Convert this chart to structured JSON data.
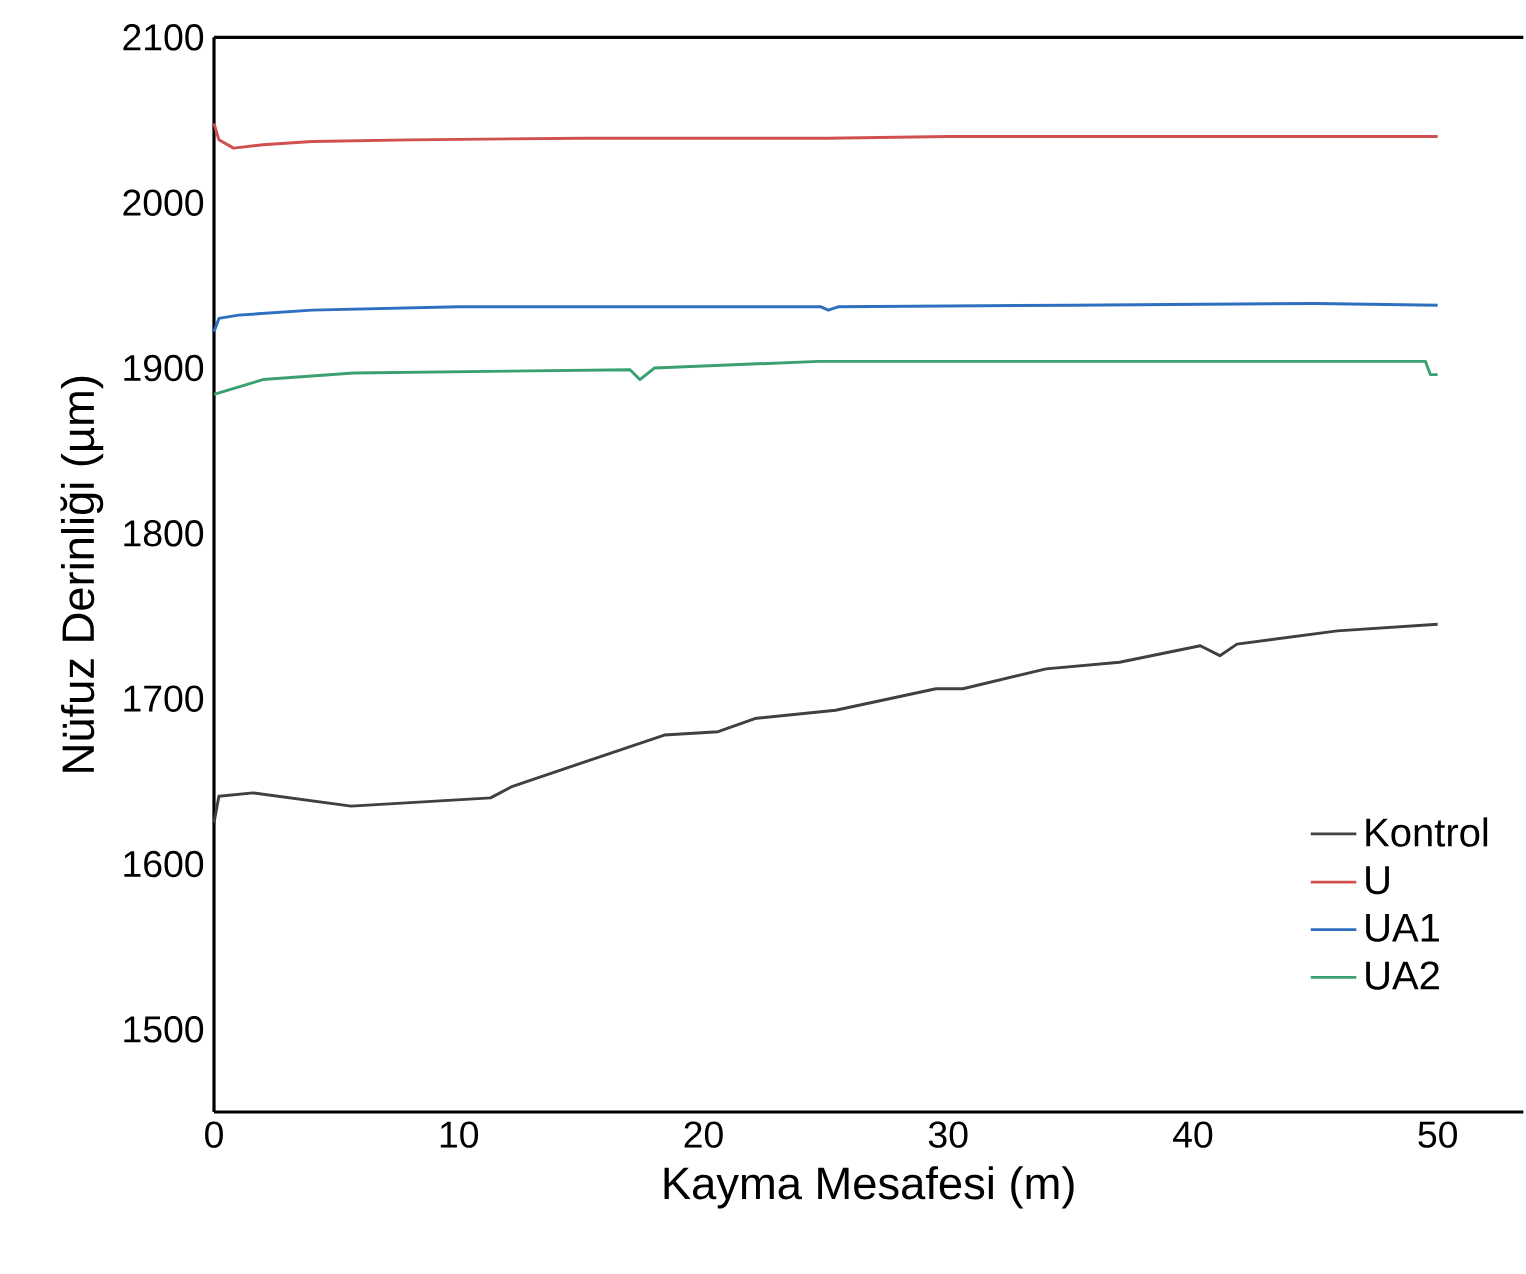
{
  "chart_data": {
    "type": "line",
    "xlabel": "Kayma Mesafesi (m)",
    "ylabel": "Nüfuz Derinliği (µm)",
    "xlim": [
      0,
      53.5
    ],
    "ylim": [
      1450,
      2100
    ],
    "xticks": [
      0,
      10,
      20,
      30,
      40,
      50
    ],
    "yticks": [
      1500,
      1600,
      1700,
      1800,
      1900,
      2000,
      2100
    ],
    "grid": false,
    "legend": "bottom right",
    "marker": "none",
    "line_style": "solid",
    "series": [
      {
        "name": "Kontrol",
        "color": "#404040",
        "x": [
          0,
          0.2,
          1.6,
          5.6,
          11.3,
          12.2,
          18.4,
          20.6,
          22.1,
          25.4,
          29.5,
          30.6,
          34,
          37,
          40.3,
          41.1,
          41.8,
          45.9,
          50
        ],
        "values": [
          1625,
          1641,
          1643,
          1635,
          1640,
          1647,
          1678,
          1680,
          1688,
          1693,
          1706,
          1706,
          1718,
          1722,
          1732,
          1726,
          1733,
          1741,
          1745
        ]
      },
      {
        "name": "U",
        "color": "#d05050",
        "x": [
          0,
          0.2,
          0.8,
          2,
          4,
          8,
          15,
          25,
          30,
          40,
          50
        ],
        "values": [
          2048,
          2038,
          2033,
          2035,
          2037,
          2038,
          2039,
          2039,
          2040,
          2040,
          2040
        ]
      },
      {
        "name": "UA1",
        "color": "#2e6fbf",
        "x": [
          0,
          0.2,
          1,
          4,
          10,
          20,
          24.8,
          25.1,
          25.5,
          35,
          45,
          50
        ],
        "values": [
          1922,
          1930,
          1932,
          1935,
          1937,
          1937,
          1937,
          1935,
          1937,
          1938,
          1939,
          1938
        ]
      },
      {
        "name": "UA2",
        "color": "#3aa070",
        "x": [
          0,
          2,
          5.7,
          17,
          17.4,
          18,
          24.7,
          35,
          49.5,
          49.7,
          50
        ],
        "values": [
          1884,
          1893,
          1897,
          1899,
          1893,
          1900,
          1904,
          1904,
          1904,
          1896,
          1896
        ]
      }
    ]
  }
}
